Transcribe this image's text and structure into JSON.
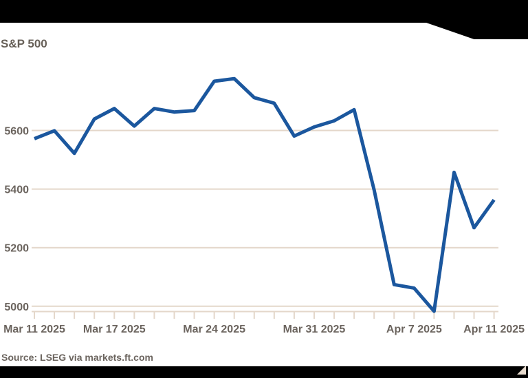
{
  "page": {
    "title": "S&P 500",
    "source": "Source: LSEG via markets.ft.com"
  },
  "colors": {
    "line": "#1b579e",
    "grid": "#e4d7ca",
    "axis_label": "#6b645e",
    "title": "#676058",
    "cropped_content": "#000000",
    "expand_icon": "#e8dccf",
    "background": "#ffffff"
  },
  "icons": {
    "expand_icon": "resize-triangle-bottom-right"
  },
  "chart_data": {
    "type": "line",
    "title": "S&P 500",
    "source": "Source: LSEG via markets.ft.com",
    "legend": "none",
    "grid": "horizontal",
    "x": [
      "Mar 11 2025",
      "Mar 12 2025",
      "Mar 13 2025",
      "Mar 14 2025",
      "Mar 17 2025",
      "Mar 18 2025",
      "Mar 19 2025",
      "Mar 20 2025",
      "Mar 21 2025",
      "Mar 24 2025",
      "Mar 25 2025",
      "Mar 26 2025",
      "Mar 27 2025",
      "Mar 28 2025",
      "Mar 31 2025",
      "Apr 1 2025",
      "Apr 2 2025",
      "Apr 3 2025",
      "Apr 4 2025",
      "Apr 7 2025",
      "Apr 8 2025",
      "Apr 9 2025",
      "Apr 10 2025",
      "Apr 11 2025"
    ],
    "series": [
      {
        "name": "S&P 500",
        "values": [
          5572,
          5599,
          5522,
          5639,
          5675,
          5615,
          5675,
          5663,
          5668,
          5768,
          5777,
          5712,
          5693,
          5581,
          5612,
          5633,
          5671,
          5397,
          5074,
          5062,
          4983,
          5457,
          5268,
          5363
        ]
      }
    ],
    "x_axis": {
      "tick_label_indices": [
        0,
        4,
        9,
        14,
        19,
        23
      ],
      "tick_labels": [
        "Mar 11 2025",
        "Mar 17 2025",
        "Mar 24 2025",
        "Mar 31 2025",
        "Apr 7 2025",
        "Apr 11 2025"
      ],
      "minor_ticks": "every business day"
    },
    "y_axis": {
      "ticks": [
        5000,
        5200,
        5400,
        5600
      ],
      "ylim": [
        4975,
        5800
      ]
    }
  }
}
